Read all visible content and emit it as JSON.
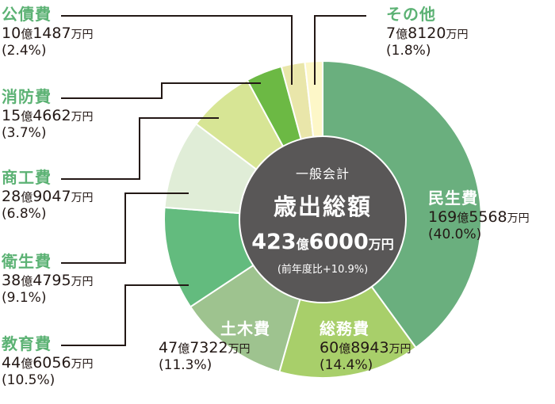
{
  "chart_data": {
    "type": "pie",
    "variant": "donut",
    "title": "一般会計 歳出総額",
    "total": {
      "amount_label": "423億6000万円",
      "oku": "423",
      "man": "6000",
      "change": "(前年度比+10.9%)"
    },
    "unit": "万円",
    "categories": [
      "民生費",
      "総務費",
      "土木費",
      "教育費",
      "衛生費",
      "商工費",
      "消防費",
      "公債費",
      "その他"
    ],
    "values_man_yen": [
      1695568,
      608943,
      477322,
      446056,
      384795,
      289047,
      154662,
      101487,
      78120
    ],
    "percentages": [
      40.0,
      14.4,
      11.3,
      10.5,
      9.1,
      6.8,
      3.7,
      2.4,
      1.8
    ],
    "colors": [
      "#6aaf7e",
      "#a8cf6a",
      "#9ec38f",
      "#63bb7e",
      "#e0edd7",
      "#d7e595",
      "#6cb944",
      "#e9e6aa",
      "#fdf7c8"
    ],
    "center_color": "#595757",
    "start_angle_deg": 0,
    "direction": "clockwise",
    "legend_position": "leader-line labels"
  },
  "labels": {
    "center_sub": "一般会計",
    "center_title": "歳出総額",
    "center_oku_num": "423",
    "center_man_num": "6000",
    "oku_unit": "億",
    "man_unit": "万円",
    "center_change": "(前年度比+10.9%)",
    "items": [
      {
        "name": "民生費",
        "oku": "169",
        "man": "5568",
        "pct": "(40.0%)"
      },
      {
        "name": "総務費",
        "oku": "60",
        "man": "8943",
        "pct": "(14.4%)"
      },
      {
        "name": "土木費",
        "oku": "47",
        "man": "7322",
        "pct": "(11.3%)"
      },
      {
        "name": "教育費",
        "oku": "44",
        "man": "6056",
        "pct": "(10.5%)"
      },
      {
        "name": "衛生費",
        "oku": "38",
        "man": "4795",
        "pct": "(9.1%)"
      },
      {
        "name": "商工費",
        "oku": "28",
        "man": "9047",
        "pct": "(6.8%)"
      },
      {
        "name": "消防費",
        "oku": "15",
        "man": "4662",
        "pct": "(3.7%)"
      },
      {
        "name": "公債費",
        "oku": "10",
        "man": "1487",
        "pct": "(2.4%)"
      },
      {
        "name": "その他",
        "oku": "7",
        "man": "8120",
        "pct": "(1.8%)"
      }
    ]
  },
  "colors": {
    "category_label": "#5cb274",
    "text": "#231815",
    "leader_line": "#231815"
  }
}
